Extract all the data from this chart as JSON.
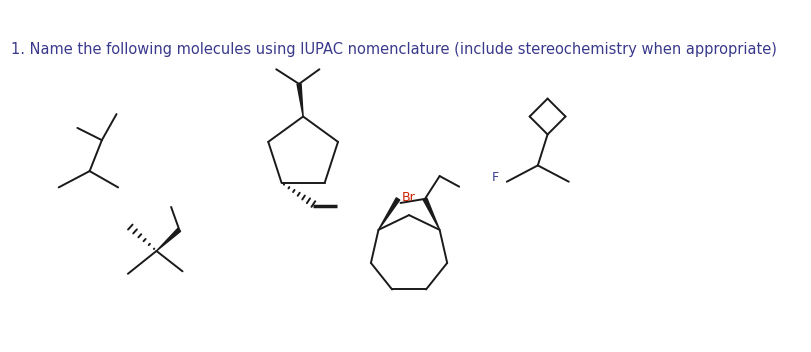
{
  "title": "1. Name the following molecules using IUPAC nomenclature (include stereochemistry when appropriate)",
  "title_color": "#3a3a8c",
  "title_fontsize": 10.5,
  "background_color": "#ffffff",
  "line_color": "#1a1a1a",
  "line_width": 1.4,
  "fig_width": 8.11,
  "fig_height": 3.52,
  "label_color_F": "#3a3a8c",
  "label_color_Br": "#cc2200"
}
